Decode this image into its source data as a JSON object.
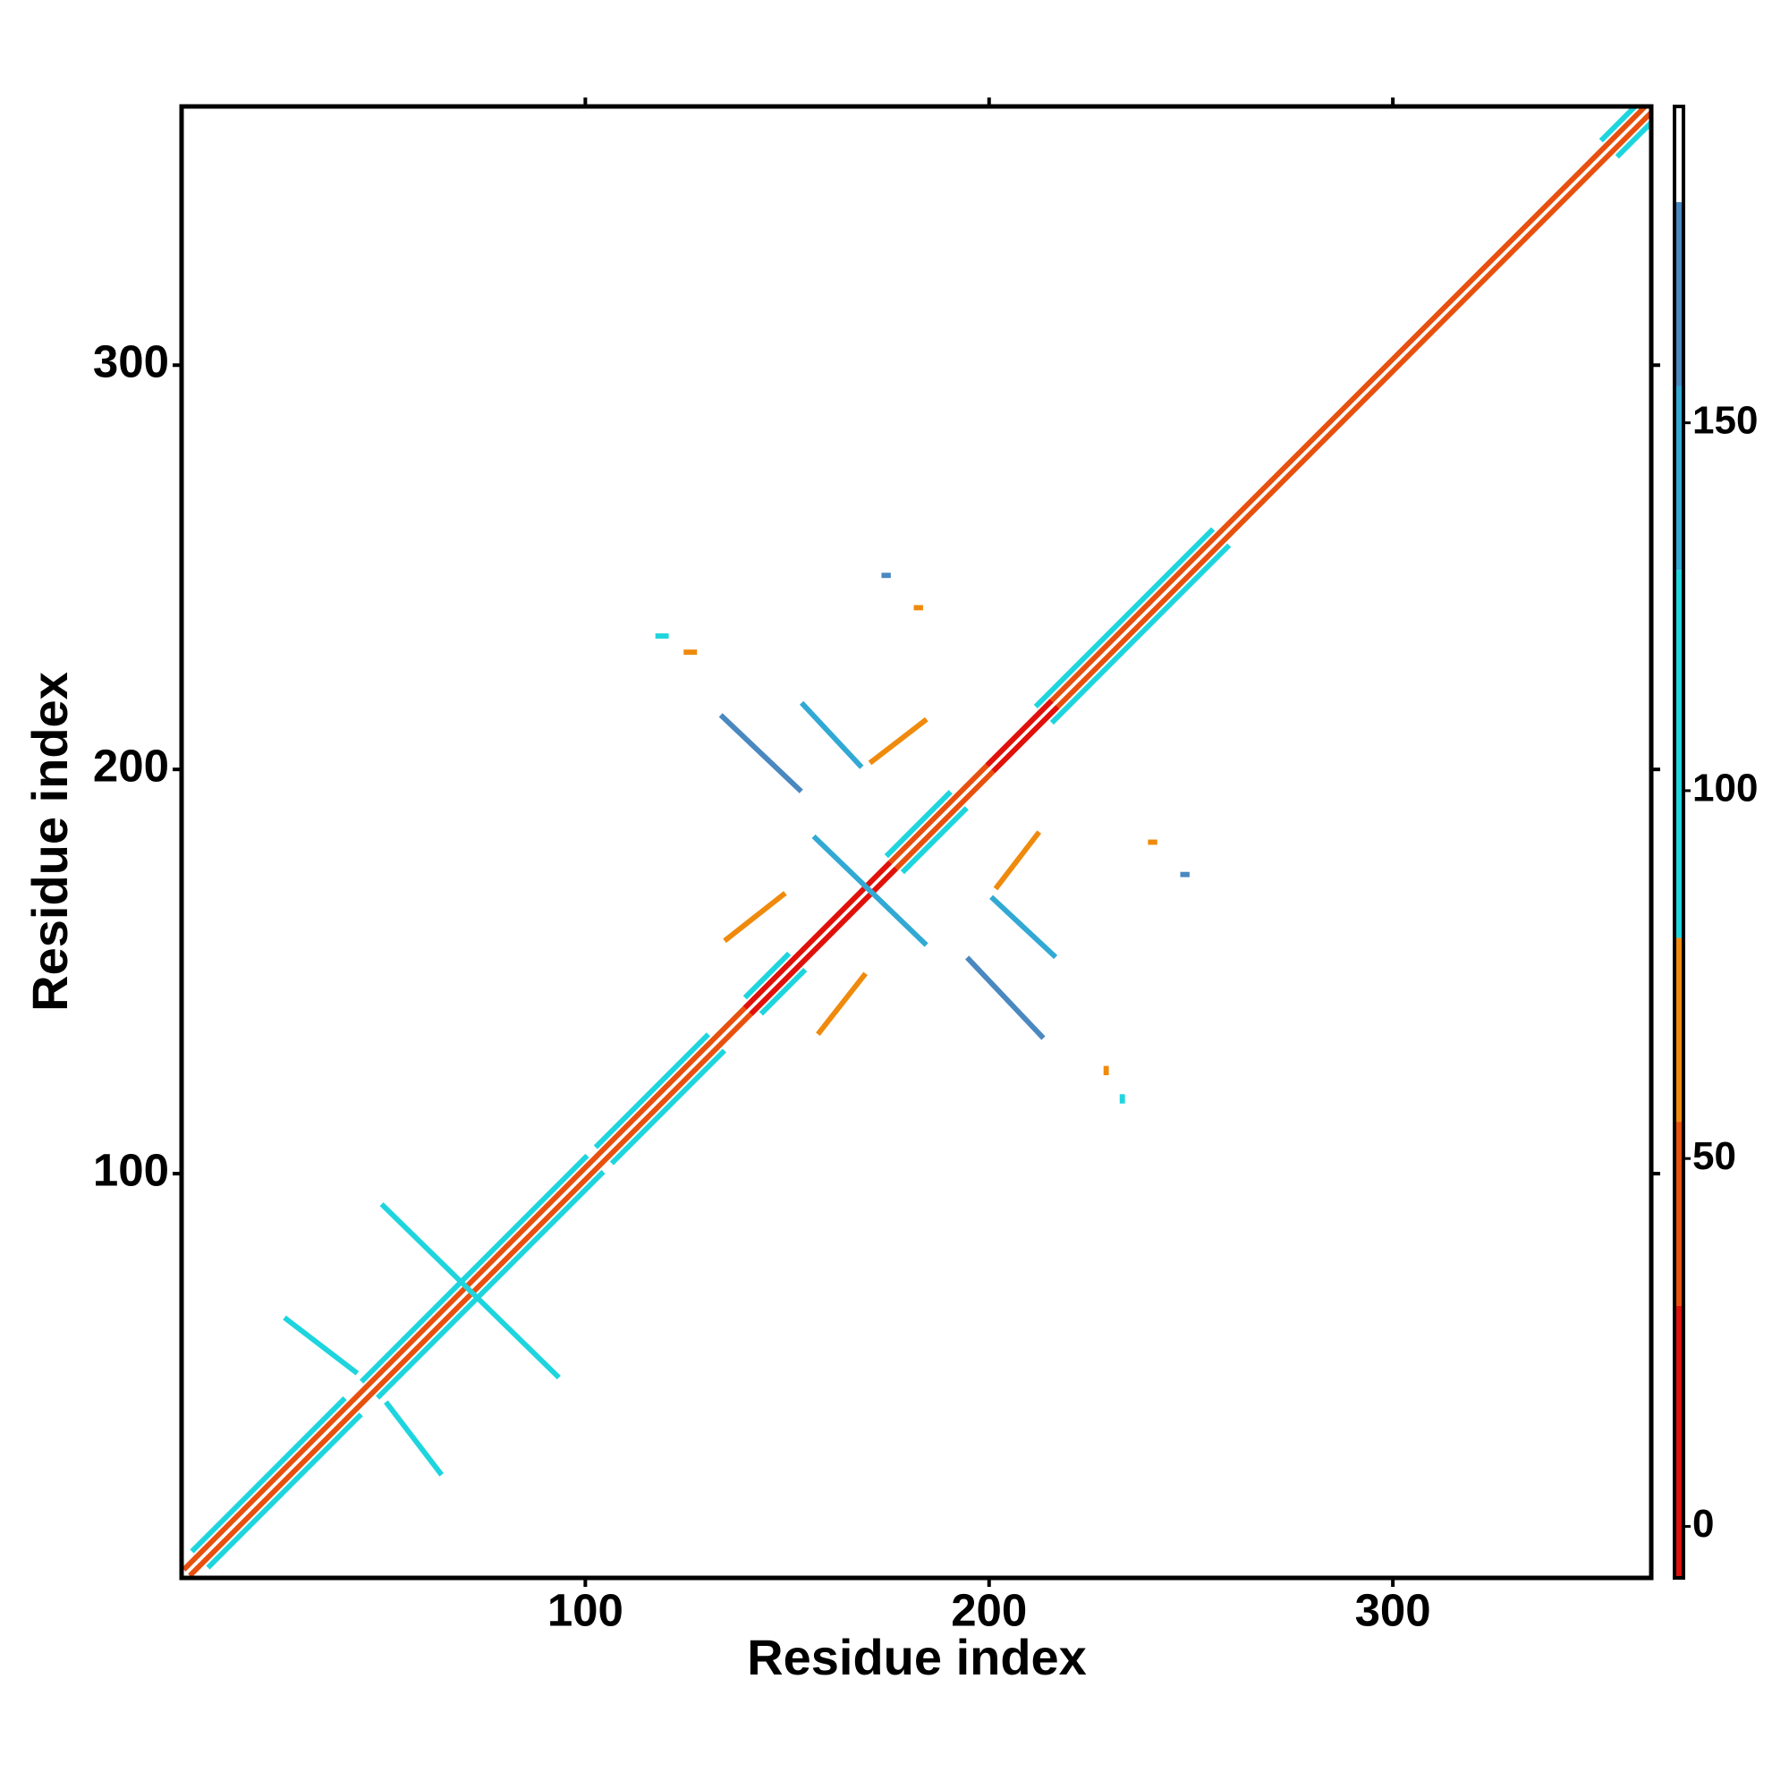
{
  "chart_data": {
    "type": "contact-map",
    "x_label": "Residue index",
    "y_label": "Residue index",
    "xlim": [
      0,
      364
    ],
    "ylim": [
      0,
      364
    ],
    "xticks": [
      100,
      200,
      300
    ],
    "yticks": [
      100,
      200,
      300
    ],
    "colorbar": {
      "lim": [
        -7,
        193
      ],
      "ticks": [
        0,
        50,
        100,
        150
      ],
      "bounds": [
        -7,
        30,
        55,
        80,
        130,
        155,
        180,
        193
      ],
      "colors": [
        "#e0100b",
        "#e8500e",
        "#f08a0c",
        "#1ed5de",
        "#31a9d4",
        "#4a88c0",
        "#ffffff"
      ]
    },
    "contacts": [
      [
        1,
        2.5,
        362.5,
        364,
        45
      ],
      [
        2.5,
        1,
        364,
        362.5,
        45
      ],
      [
        3,
        7,
        40,
        44,
        95
      ],
      [
        7,
        3,
        44,
        40,
        95
      ],
      [
        45,
        49,
        100,
        104,
        95
      ],
      [
        49,
        45,
        104,
        100,
        95
      ],
      [
        103,
        107,
        130,
        134,
        95
      ],
      [
        107,
        103,
        134,
        130,
        95
      ],
      [
        140,
        144,
        150,
        154,
        95
      ],
      [
        144,
        140,
        154,
        150,
        95
      ],
      [
        175,
        179,
        190,
        194,
        95
      ],
      [
        179,
        175,
        194,
        190,
        95
      ],
      [
        212,
        216,
        255,
        259,
        95
      ],
      [
        216,
        212,
        259,
        255,
        95
      ],
      [
        352,
        356,
        362,
        366,
        95
      ],
      [
        356,
        352,
        366,
        362,
        95
      ],
      [
        140,
        141.5,
        175,
        176.5,
        10
      ],
      [
        141.5,
        140,
        176.5,
        175,
        10
      ],
      [
        200,
        201.5,
        215,
        216.5,
        10
      ],
      [
        201.5,
        200,
        216.5,
        215,
        10
      ],
      [
        26,
        64,
        43,
        51,
        95
      ],
      [
        64,
        26,
        51,
        43,
        95
      ],
      [
        50,
        92,
        93,
        50,
        90
      ],
      [
        134,
        213,
        153,
        195,
        160
      ],
      [
        213,
        134,
        195,
        153,
        160
      ],
      [
        154,
        216,
        168,
        201,
        145
      ],
      [
        216,
        154,
        201,
        168,
        145
      ],
      [
        157,
        183,
        184,
        157,
        145
      ],
      [
        171,
        202,
        184,
        212,
        55
      ],
      [
        202,
        171,
        212,
        184,
        55
      ],
      [
        135,
        158,
        149,
        169,
        55
      ],
      [
        158,
        135,
        169,
        149,
        55
      ],
      [
        118,
        233,
        120,
        233,
        95
      ],
      [
        125,
        229,
        127,
        229,
        65
      ],
      [
        174,
        248,
        175,
        248,
        165
      ],
      [
        182,
        240,
        183,
        240,
        65
      ],
      [
        240,
        182,
        241,
        182,
        65
      ],
      [
        248,
        174,
        249,
        174,
        165
      ],
      [
        229,
        125,
        229,
        126,
        65
      ],
      [
        233,
        118,
        233,
        119,
        95
      ]
    ]
  }
}
